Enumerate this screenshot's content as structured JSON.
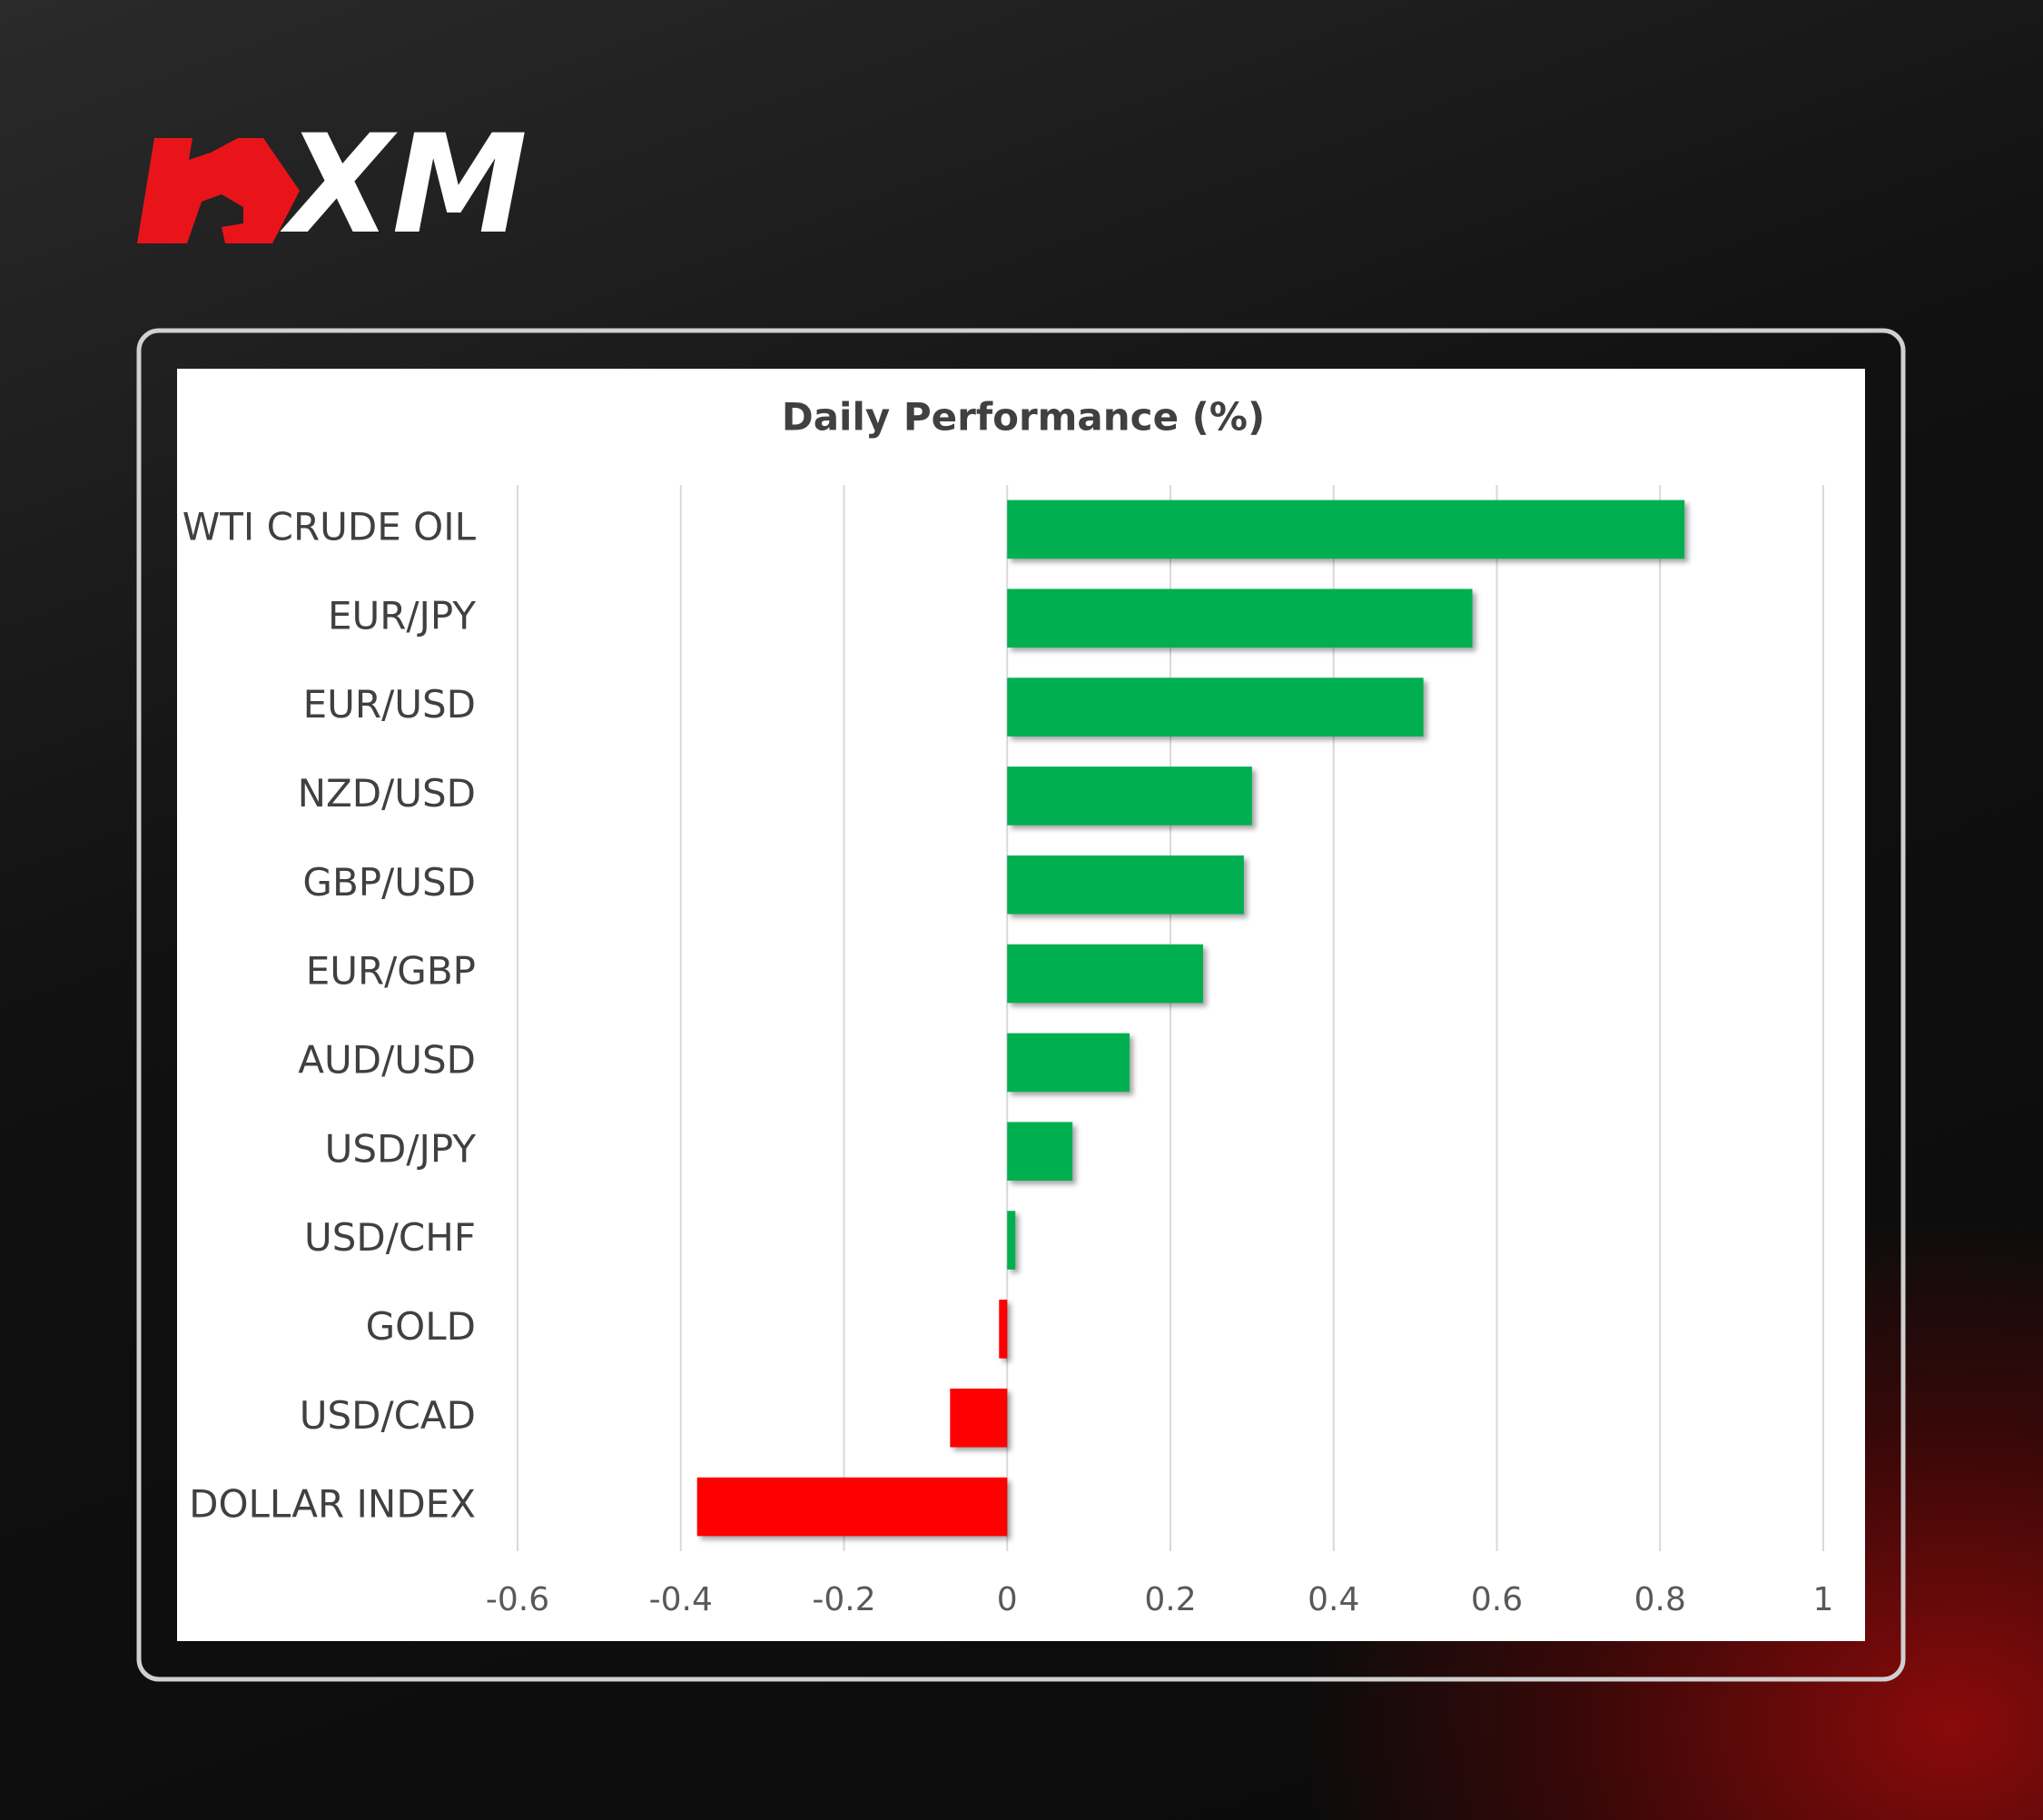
{
  "brand": "XM",
  "chart_data": {
    "type": "hbar",
    "title": "Daily Performance (%)",
    "categories": [
      "WTI CRUDE OIL",
      "EUR/JPY",
      "EUR/USD",
      "NZD/USD",
      "GBP/USD",
      "EUR/GBP",
      "AUD/USD",
      "USD/JPY",
      "USD/CHF",
      "GOLD",
      "USD/CAD",
      "DOLLAR INDEX"
    ],
    "values": [
      0.83,
      0.57,
      0.51,
      0.3,
      0.29,
      0.24,
      0.15,
      0.08,
      0.01,
      -0.01,
      -0.07,
      -0.38
    ],
    "color_positive": "#00b050",
    "color_negative": "#ff0000",
    "xlim": [
      -0.6,
      1
    ],
    "xticks": [
      -0.6,
      -0.4,
      -0.2,
      0,
      0.2,
      0.4,
      0.6,
      0.8,
      1
    ],
    "grid": true
  }
}
